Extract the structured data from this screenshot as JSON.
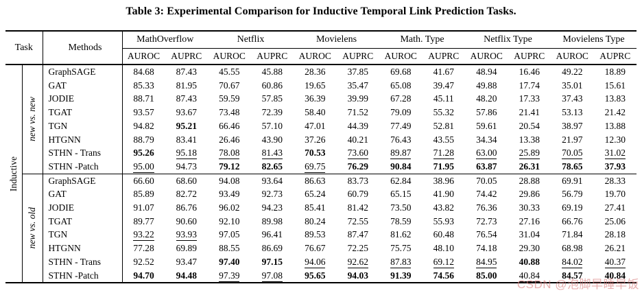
{
  "title": "Table 3: Experimental Comparison for Inductive Temporal Link Prediction Tasks.",
  "watermark": "CSDN @泡脚早睡早饭",
  "table": {
    "task_header": "Task",
    "methods_header": "Methods",
    "task_label": "Inductive",
    "dataset_groups": [
      "MathOverflow",
      "Netflix",
      "Movielens",
      "Math. Type",
      "Netflix Type",
      "Movielens Type"
    ],
    "metrics": [
      "AUROC",
      "AUPRC"
    ],
    "style_legend": {
      "b": "bold = best result",
      "u": "underline = second best",
      "": "plain"
    },
    "sections": [
      {
        "label": "new vs. new",
        "rows": [
          {
            "method": "GraphSAGE",
            "values": [
              "84.68",
              "87.43",
              "45.55",
              "45.88",
              "28.36",
              "37.85",
              "69.68",
              "41.67",
              "48.94",
              "16.46",
              "49.22",
              "18.89"
            ],
            "styles": [
              "",
              "",
              "",
              "",
              "",
              "",
              "",
              "",
              "",
              "",
              "",
              ""
            ]
          },
          {
            "method": "GAT",
            "values": [
              "85.33",
              "81.95",
              "70.67",
              "60.86",
              "19.65",
              "35.47",
              "65.08",
              "39.47",
              "49.88",
              "17.74",
              "35.01",
              "15.61"
            ],
            "styles": [
              "",
              "",
              "",
              "",
              "",
              "",
              "",
              "",
              "",
              "",
              "",
              ""
            ]
          },
          {
            "method": "JODIE",
            "values": [
              "88.71",
              "87.43",
              "59.59",
              "57.85",
              "36.39",
              "39.99",
              "67.28",
              "45.11",
              "48.20",
              "17.33",
              "37.43",
              "13.83"
            ],
            "styles": [
              "",
              "",
              "",
              "",
              "",
              "",
              "",
              "",
              "",
              "",
              "",
              ""
            ]
          },
          {
            "method": "TGAT",
            "values": [
              "93.57",
              "93.67",
              "73.48",
              "72.39",
              "58.40",
              "71.52",
              "79.09",
              "55.32",
              "57.86",
              "21.41",
              "53.13",
              "21.42"
            ],
            "styles": [
              "",
              "",
              "",
              "",
              "",
              "",
              "",
              "",
              "",
              "",
              "",
              ""
            ]
          },
          {
            "method": "TGN",
            "values": [
              "94.82",
              "95.21",
              "66.46",
              "57.10",
              "47.01",
              "44.39",
              "77.49",
              "52.81",
              "59.61",
              "20.54",
              "38.97",
              "13.88"
            ],
            "styles": [
              "",
              "b",
              "",
              "",
              "",
              "",
              "",
              "",
              "",
              "",
              "",
              ""
            ]
          },
          {
            "method": "HTGNN",
            "values": [
              "88.79",
              "83.41",
              "26.46",
              "43.90",
              "37.26",
              "40.21",
              "76.43",
              "43.55",
              "34.34",
              "13.38",
              "21.97",
              "12.30"
            ],
            "styles": [
              "",
              "",
              "",
              "",
              "",
              "",
              "",
              "",
              "",
              "",
              "",
              ""
            ]
          },
          {
            "method": "STHN - Trans",
            "values": [
              "95.26",
              "95.18",
              "78.08",
              "81.43",
              "70.53",
              "73.60",
              "89.87",
              "71.28",
              "63.00",
              "25.89",
              "70.05",
              "31.02"
            ],
            "styles": [
              "b",
              "u",
              "u",
              "u",
              "b",
              "u",
              "u",
              "u",
              "u",
              "u",
              "u",
              "u"
            ]
          },
          {
            "method": "STHN -Patch",
            "values": [
              "95.00",
              "94.73",
              "79.12",
              "82.65",
              "69.75",
              "76.29",
              "90.84",
              "71.95",
              "63.87",
              "26.31",
              "78.65",
              "37.93"
            ],
            "styles": [
              "u",
              "",
              "b",
              "b",
              "u",
              "b",
              "b",
              "b",
              "b",
              "b",
              "b",
              "b"
            ]
          }
        ]
      },
      {
        "label": "new vs. old",
        "rows": [
          {
            "method": "GraphSAGE",
            "values": [
              "66.60",
              "68.60",
              "94.08",
              "93.64",
              "86.63",
              "83.73",
              "62.84",
              "38.96",
              "70.05",
              "28.88",
              "69.91",
              "28.33"
            ],
            "styles": [
              "",
              "",
              "",
              "",
              "",
              "",
              "",
              "",
              "",
              "",
              "",
              ""
            ]
          },
          {
            "method": "GAT",
            "values": [
              "85.89",
              "82.72",
              "93.49",
              "92.73",
              "65.24",
              "60.79",
              "65.15",
              "41.90",
              "74.42",
              "29.86",
              "56.79",
              "19.70"
            ],
            "styles": [
              "",
              "",
              "",
              "",
              "",
              "",
              "",
              "",
              "",
              "",
              "",
              ""
            ]
          },
          {
            "method": "JODIE",
            "values": [
              "91.07",
              "86.76",
              "96.02",
              "94.23",
              "85.41",
              "81.42",
              "73.50",
              "43.82",
              "76.36",
              "30.33",
              "69.19",
              "27.41"
            ],
            "styles": [
              "",
              "",
              "",
              "",
              "",
              "",
              "",
              "",
              "",
              "",
              "",
              ""
            ]
          },
          {
            "method": "TGAT",
            "values": [
              "89.77",
              "90.60",
              "92.10",
              "89.98",
              "80.24",
              "72.55",
              "78.59",
              "55.93",
              "72.73",
              "27.16",
              "66.76",
              "25.06"
            ],
            "styles": [
              "",
              "",
              "",
              "",
              "",
              "",
              "",
              "",
              "",
              "",
              "",
              ""
            ]
          },
          {
            "method": "TGN",
            "values": [
              "93.22",
              "93.93",
              "97.05",
              "96.41",
              "89.53",
              "87.47",
              "81.62",
              "60.48",
              "76.54",
              "31.04",
              "71.84",
              "28.18"
            ],
            "styles": [
              "u",
              "u",
              "",
              "",
              "",
              "",
              "",
              "",
              "",
              "",
              "",
              ""
            ]
          },
          {
            "method": "HTGNN",
            "values": [
              "77.28",
              "69.89",
              "88.55",
              "86.69",
              "76.67",
              "72.25",
              "75.75",
              "48.10",
              "74.18",
              "29.30",
              "68.98",
              "26.21"
            ],
            "styles": [
              "",
              "",
              "",
              "",
              "",
              "",
              "",
              "",
              "",
              "",
              "",
              ""
            ]
          },
          {
            "method": "STHN - Trans",
            "values": [
              "92.52",
              "93.47",
              "97.40",
              "97.15",
              "94.06",
              "92.62",
              "87.83",
              "69.12",
              "84.95",
              "40.88",
              "84.02",
              "40.37"
            ],
            "styles": [
              "",
              "",
              "b",
              "b",
              "u",
              "u",
              "u",
              "u",
              "u",
              "b",
              "u",
              "u"
            ]
          },
          {
            "method": "STHN -Patch",
            "values": [
              "94.70",
              "94.48",
              "97.39",
              "97.08",
              "95.65",
              "94.03",
              "91.39",
              "74.56",
              "85.00",
              "40.84",
              "84.57",
              "40.84"
            ],
            "styles": [
              "b",
              "b",
              "u",
              "u",
              "b",
              "b",
              "b",
              "b",
              "b",
              "u",
              "b",
              "b"
            ]
          }
        ]
      }
    ]
  }
}
